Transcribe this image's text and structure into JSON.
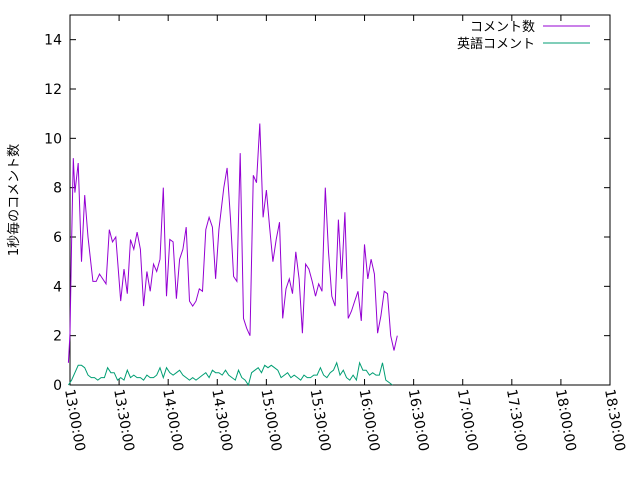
{
  "chart_data": {
    "type": "line",
    "title": "",
    "xlabel": "",
    "ylabel": "1秒毎のコメント数",
    "xlim": [
      "13:00:00",
      "18:30:00"
    ],
    "ylim": [
      0,
      15
    ],
    "grid": false,
    "legend_placement": "top-right",
    "x_ticks": [
      "13:00:00",
      "13:30:00",
      "14:00:00",
      "14:30:00",
      "15:00:00",
      "15:30:00",
      "16:00:00",
      "16:30:00",
      "17:00:00",
      "17:30:00",
      "18:00:00",
      "18:30:00"
    ],
    "y_ticks": [
      0,
      2,
      4,
      6,
      8,
      10,
      12,
      14
    ],
    "series": [
      {
        "name": "コメント数",
        "color": "#9400d3",
        "points": [
          [
            "12:59:00",
            0.9
          ],
          [
            "13:00:00",
            2.1
          ],
          [
            "13:01:00",
            5.8
          ],
          [
            "13:02:00",
            9.2
          ],
          [
            "13:03:00",
            7.8
          ],
          [
            "13:05:00",
            9.0
          ],
          [
            "13:07:00",
            5.0
          ],
          [
            "13:09:00",
            7.7
          ],
          [
            "13:11:00",
            6.0
          ],
          [
            "13:14:00",
            4.2
          ],
          [
            "13:16:00",
            4.2
          ],
          [
            "13:18:00",
            4.5
          ],
          [
            "13:22:00",
            4.1
          ],
          [
            "13:24:00",
            6.3
          ],
          [
            "13:26:00",
            5.8
          ],
          [
            "13:28:00",
            6.0
          ],
          [
            "13:31:00",
            3.4
          ],
          [
            "13:33:00",
            4.7
          ],
          [
            "13:35:00",
            3.7
          ],
          [
            "13:37:00",
            5.9
          ],
          [
            "13:39:00",
            5.5
          ],
          [
            "13:41:00",
            6.2
          ],
          [
            "13:43:00",
            5.5
          ],
          [
            "13:45:00",
            3.2
          ],
          [
            "13:47:00",
            4.6
          ],
          [
            "13:49:00",
            3.8
          ],
          [
            "13:51:00",
            4.9
          ],
          [
            "13:53:00",
            4.6
          ],
          [
            "13:55:00",
            5.1
          ],
          [
            "13:57:00",
            8.0
          ],
          [
            "13:59:00",
            3.6
          ],
          [
            "14:01:00",
            5.9
          ],
          [
            "14:03:00",
            5.8
          ],
          [
            "14:05:00",
            3.5
          ],
          [
            "14:07:00",
            5.1
          ],
          [
            "14:09:00",
            5.5
          ],
          [
            "14:11:00",
            6.4
          ],
          [
            "14:13:00",
            3.4
          ],
          [
            "14:15:00",
            3.2
          ],
          [
            "14:17:00",
            3.4
          ],
          [
            "14:19:00",
            3.9
          ],
          [
            "14:21:00",
            3.8
          ],
          [
            "14:23:00",
            6.3
          ],
          [
            "14:25:00",
            6.8
          ],
          [
            "14:27:00",
            6.4
          ],
          [
            "14:29:00",
            4.3
          ],
          [
            "14:31:00",
            6.3
          ],
          [
            "14:34:00",
            8.0
          ],
          [
            "14:36:00",
            8.8
          ],
          [
            "14:38:00",
            6.8
          ],
          [
            "14:40:00",
            4.4
          ],
          [
            "14:42:00",
            4.2
          ],
          [
            "14:44:00",
            9.4
          ],
          [
            "14:46:00",
            2.7
          ],
          [
            "14:48:00",
            2.3
          ],
          [
            "14:50:00",
            2.0
          ],
          [
            "14:52:00",
            8.5
          ],
          [
            "14:54:00",
            8.2
          ],
          [
            "14:56:00",
            10.6
          ],
          [
            "14:58:00",
            6.8
          ],
          [
            "15:00:00",
            7.9
          ],
          [
            "15:02:00",
            6.4
          ],
          [
            "15:04:00",
            5.0
          ],
          [
            "15:06:00",
            5.9
          ],
          [
            "15:08:00",
            6.6
          ],
          [
            "15:10:00",
            2.7
          ],
          [
            "15:12:00",
            3.9
          ],
          [
            "15:14:00",
            4.3
          ],
          [
            "15:16:00",
            3.7
          ],
          [
            "15:18:00",
            5.4
          ],
          [
            "15:20:00",
            4.3
          ],
          [
            "15:22:00",
            2.1
          ],
          [
            "15:24:00",
            4.9
          ],
          [
            "15:26:00",
            4.7
          ],
          [
            "15:28:00",
            4.2
          ],
          [
            "15:30:00",
            3.6
          ],
          [
            "15:32:00",
            4.1
          ],
          [
            "15:34:00",
            3.8
          ],
          [
            "15:36:00",
            8.0
          ],
          [
            "15:38:00",
            5.4
          ],
          [
            "15:40:00",
            3.6
          ],
          [
            "15:42:00",
            3.2
          ],
          [
            "15:44:00",
            6.7
          ],
          [
            "15:46:00",
            4.3
          ],
          [
            "15:48:00",
            7.0
          ],
          [
            "15:50:00",
            2.7
          ],
          [
            "15:52:00",
            3.0
          ],
          [
            "15:54:00",
            3.4
          ],
          [
            "15:56:00",
            3.8
          ],
          [
            "15:58:00",
            2.6
          ],
          [
            "16:00:00",
            5.7
          ],
          [
            "16:02:00",
            4.3
          ],
          [
            "16:04:00",
            5.1
          ],
          [
            "16:06:00",
            4.5
          ],
          [
            "16:08:00",
            2.1
          ],
          [
            "16:10:00",
            2.8
          ],
          [
            "16:12:00",
            3.8
          ],
          [
            "16:14:00",
            3.7
          ],
          [
            "16:16:00",
            2.0
          ],
          [
            "16:18:00",
            1.4
          ],
          [
            "16:20:00",
            2.0
          ]
        ]
      },
      {
        "name": "英語コメント",
        "color": "#009e73",
        "points": [
          [
            "12:59:00",
            0.0
          ],
          [
            "13:01:00",
            0.2
          ],
          [
            "13:03:00",
            0.5
          ],
          [
            "13:05:00",
            0.8
          ],
          [
            "13:07:00",
            0.8
          ],
          [
            "13:09:00",
            0.7
          ],
          [
            "13:11:00",
            0.4
          ],
          [
            "13:13:00",
            0.3
          ],
          [
            "13:15:00",
            0.3
          ],
          [
            "13:17:00",
            0.2
          ],
          [
            "13:19:00",
            0.3
          ],
          [
            "13:21:00",
            0.3
          ],
          [
            "13:23:00",
            0.7
          ],
          [
            "13:25:00",
            0.5
          ],
          [
            "13:27:00",
            0.5
          ],
          [
            "13:29:00",
            0.2
          ],
          [
            "13:31:00",
            0.3
          ],
          [
            "13:33:00",
            0.2
          ],
          [
            "13:35:00",
            0.6
          ],
          [
            "13:37:00",
            0.3
          ],
          [
            "13:39:00",
            0.4
          ],
          [
            "13:41:00",
            0.3
          ],
          [
            "13:43:00",
            0.3
          ],
          [
            "13:45:00",
            0.2
          ],
          [
            "13:47:00",
            0.4
          ],
          [
            "13:49:00",
            0.3
          ],
          [
            "13:51:00",
            0.3
          ],
          [
            "13:53:00",
            0.4
          ],
          [
            "13:55:00",
            0.7
          ],
          [
            "13:57:00",
            0.3
          ],
          [
            "13:59:00",
            0.7
          ],
          [
            "14:01:00",
            0.5
          ],
          [
            "14:03:00",
            0.4
          ],
          [
            "14:05:00",
            0.5
          ],
          [
            "14:07:00",
            0.6
          ],
          [
            "14:09:00",
            0.4
          ],
          [
            "14:11:00",
            0.3
          ],
          [
            "14:13:00",
            0.2
          ],
          [
            "14:15:00",
            0.3
          ],
          [
            "14:17:00",
            0.2
          ],
          [
            "14:19:00",
            0.3
          ],
          [
            "14:21:00",
            0.4
          ],
          [
            "14:23:00",
            0.5
          ],
          [
            "14:25:00",
            0.3
          ],
          [
            "14:27:00",
            0.6
          ],
          [
            "14:29:00",
            0.5
          ],
          [
            "14:31:00",
            0.5
          ],
          [
            "14:33:00",
            0.4
          ],
          [
            "14:35:00",
            0.6
          ],
          [
            "14:37:00",
            0.4
          ],
          [
            "14:39:00",
            0.3
          ],
          [
            "14:41:00",
            0.2
          ],
          [
            "14:43:00",
            0.6
          ],
          [
            "14:45:00",
            0.3
          ],
          [
            "14:47:00",
            0.2
          ],
          [
            "14:49:00",
            0.0
          ],
          [
            "14:51:00",
            0.5
          ],
          [
            "14:53:00",
            0.6
          ],
          [
            "14:55:00",
            0.7
          ],
          [
            "14:57:00",
            0.5
          ],
          [
            "14:59:00",
            0.8
          ],
          [
            "15:01:00",
            0.7
          ],
          [
            "15:03:00",
            0.8
          ],
          [
            "15:05:00",
            0.7
          ],
          [
            "15:07:00",
            0.6
          ],
          [
            "15:09:00",
            0.3
          ],
          [
            "15:11:00",
            0.4
          ],
          [
            "15:13:00",
            0.5
          ],
          [
            "15:15:00",
            0.3
          ],
          [
            "15:17:00",
            0.4
          ],
          [
            "15:19:00",
            0.3
          ],
          [
            "15:21:00",
            0.2
          ],
          [
            "15:23:00",
            0.4
          ],
          [
            "15:25:00",
            0.3
          ],
          [
            "15:27:00",
            0.3
          ],
          [
            "15:29:00",
            0.4
          ],
          [
            "15:31:00",
            0.4
          ],
          [
            "15:33:00",
            0.7
          ],
          [
            "15:35:00",
            0.4
          ],
          [
            "15:37:00",
            0.3
          ],
          [
            "15:39:00",
            0.5
          ],
          [
            "15:41:00",
            0.6
          ],
          [
            "15:43:00",
            0.9
          ],
          [
            "15:45:00",
            0.4
          ],
          [
            "15:47:00",
            0.6
          ],
          [
            "15:49:00",
            0.3
          ],
          [
            "15:51:00",
            0.2
          ],
          [
            "15:53:00",
            0.4
          ],
          [
            "15:55:00",
            0.2
          ],
          [
            "15:57:00",
            0.9
          ],
          [
            "15:59:00",
            0.6
          ],
          [
            "16:01:00",
            0.6
          ],
          [
            "16:03:00",
            0.4
          ],
          [
            "16:05:00",
            0.5
          ],
          [
            "16:07:00",
            0.4
          ],
          [
            "16:09:00",
            0.4
          ],
          [
            "16:11:00",
            0.9
          ],
          [
            "16:13:00",
            0.2
          ],
          [
            "16:15:00",
            0.1
          ],
          [
            "16:17:00",
            0.0
          ]
        ]
      }
    ]
  }
}
